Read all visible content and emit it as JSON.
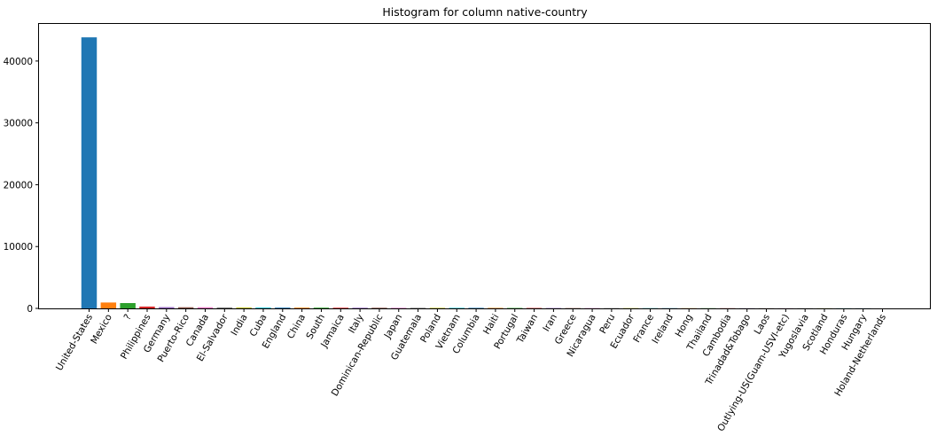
{
  "chart_data": {
    "type": "bar",
    "title": "Histogram for column native-country",
    "xlabel": "",
    "ylabel": "",
    "ylim": [
      0,
      46000
    ],
    "yticks": [
      0,
      10000,
      20000,
      30000,
      40000
    ],
    "grid": false,
    "categories": [
      "United-States",
      "Mexico",
      "?",
      "Philippines",
      "Germany",
      "Puerto-Rico",
      "Canada",
      "El-Salvador",
      "India",
      "Cuba",
      "England",
      "China",
      "South",
      "Jamaica",
      "Italy",
      "Dominican-Republic",
      "Japan",
      "Guatemala",
      "Poland",
      "Vietnam",
      "Columbia",
      "Haiti",
      "Portugal",
      "Taiwan",
      "Iran",
      "Greece",
      "Nicaragua",
      "Peru",
      "Ecuador",
      "France",
      "Ireland",
      "Hong",
      "Thailand",
      "Cambodia",
      "Trinadad&Tobago",
      "Laos",
      "Outlying-US(Guam-USVI-etc)",
      "Yugoslavia",
      "Scotland",
      "Honduras",
      "Hungary",
      "Holand-Netherlands"
    ],
    "values": [
      43830,
      950,
      860,
      295,
      205,
      185,
      182,
      155,
      151,
      138,
      127,
      122,
      115,
      106,
      105,
      103,
      92,
      88,
      87,
      86,
      85,
      75,
      67,
      65,
      59,
      49,
      49,
      46,
      45,
      38,
      37,
      30,
      30,
      28,
      27,
      23,
      23,
      23,
      21,
      20,
      19,
      1
    ],
    "colors": [
      "#1f77b4",
      "#ff7f0e",
      "#2ca02c",
      "#d62728",
      "#9467bd",
      "#8c564b",
      "#e377c2",
      "#7f7f7f",
      "#bcbd22",
      "#17becf"
    ]
  }
}
